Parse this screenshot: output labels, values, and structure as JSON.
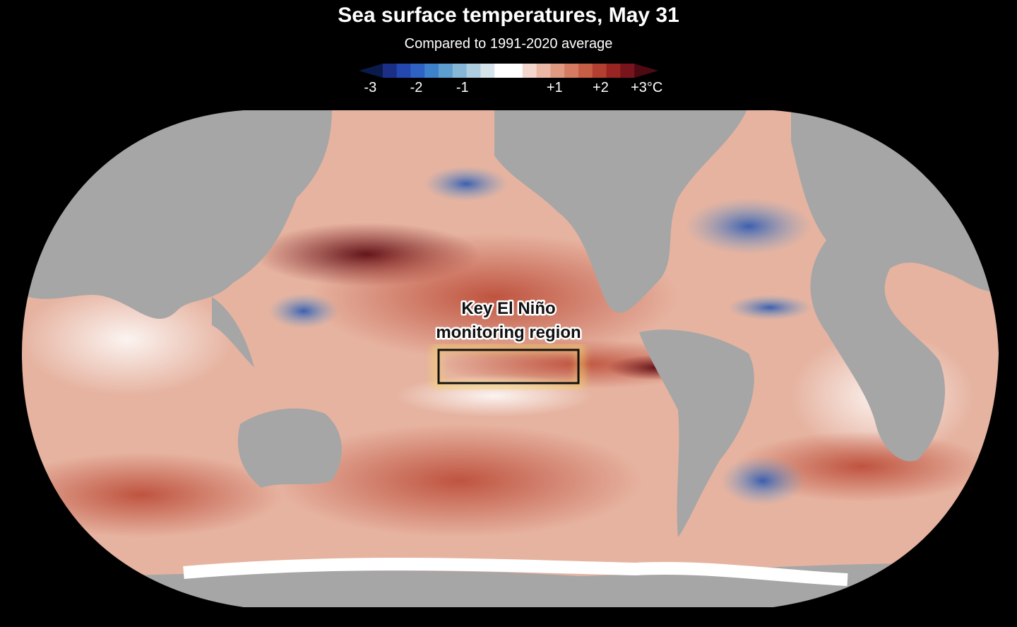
{
  "header": {
    "title": "Sea surface temperatures, May 31",
    "subtitle": "Compared to 1991-2020 average"
  },
  "legend": {
    "range": [
      -3.25,
      3.25
    ],
    "ticks": [
      {
        "value": -3,
        "label": "-3"
      },
      {
        "value": -2,
        "label": "-2"
      },
      {
        "value": -1,
        "label": "-1"
      },
      {
        "value": 1,
        "label": "+1"
      },
      {
        "value": 2,
        "label": "+2"
      },
      {
        "value": 3,
        "label": "+3°C"
      }
    ],
    "colors": [
      "#0a1a4a",
      "#1b2f86",
      "#2448b0",
      "#2e63c4",
      "#3f82cc",
      "#5e9dd0",
      "#86b7d8",
      "#adcde0",
      "#d5e4ea",
      "#ffffff",
      "#ffffff",
      "#f3d6cc",
      "#ebb8a6",
      "#e09a82",
      "#d47b62",
      "#c65e46",
      "#b23f30",
      "#982522",
      "#78141b",
      "#4e0a12"
    ]
  },
  "annotation": {
    "lines": [
      "Key El Niño",
      "monitoring region"
    ]
  }
}
